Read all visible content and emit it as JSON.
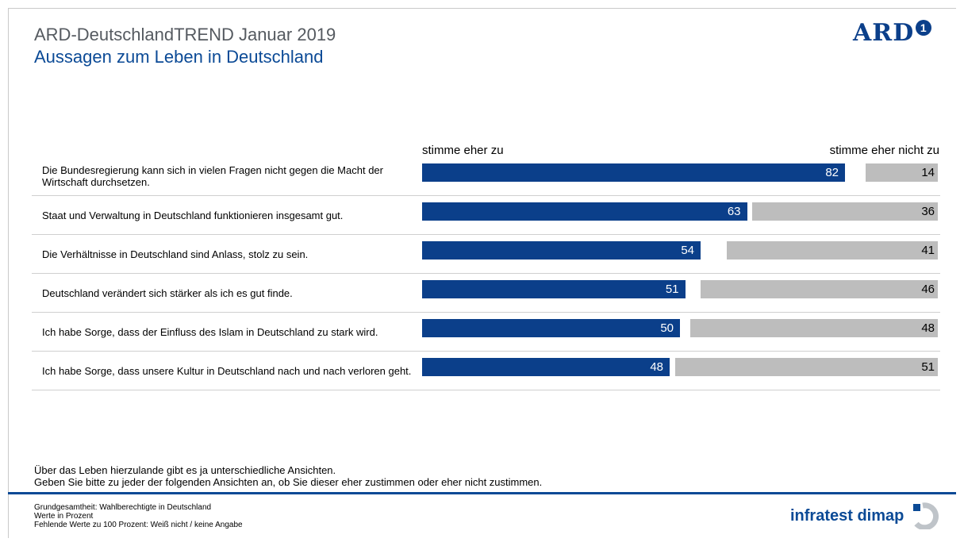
{
  "header": {
    "title": "ARD-DeutschlandTREND Januar 2019",
    "subtitle": "Aussagen zum Leben in Deutschland",
    "logo_text": "ARD",
    "logo_badge": "1"
  },
  "chart_data": {
    "type": "bar",
    "orientation": "horizontal",
    "stacked": "diverging",
    "categories": [
      "Die Bundesregierung kann sich in vielen Fragen nicht gegen die Macht der Wirtschaft durchsetzen.",
      "Staat und Verwaltung in Deutschland funktionieren insgesamt gut.",
      "Die Verhältnisse in Deutschland sind Anlass, stolz zu sein.",
      "Deutschland verändert sich stärker als ich es gut finde.",
      "Ich habe Sorge, dass der Einfluss des Islam in Deutschland zu stark wird.",
      "Ich habe Sorge, dass unsere Kultur in Deutschland nach und nach verloren geht."
    ],
    "series": [
      {
        "name": "stimme eher zu",
        "values": [
          82,
          63,
          54,
          51,
          50,
          48
        ],
        "color": "#0b3f8a"
      },
      {
        "name": "stimme eher nicht zu",
        "values": [
          14,
          36,
          41,
          46,
          48,
          51
        ],
        "color": "#bdbdbd"
      }
    ],
    "xlim": [
      0,
      100
    ]
  },
  "question": {
    "line1": "Über das Leben hierzulande gibt es ja unterschiedliche Ansichten.",
    "line2": "Geben Sie bitte zu jeder der folgenden Ansichten an, ob Sie dieser eher zustimmen oder eher nicht zustimmen."
  },
  "footer": {
    "line1": "Grundgesamtheit: Wahlberechtigte in Deutschland",
    "line2": "Werte in Prozent",
    "line3": "Fehlende Werte zu 100 Prozent: Weiß nicht / keine Angabe",
    "brand": "infratest dimap"
  },
  "colors": {
    "accent": "#0b4a96",
    "agree": "#0b3f8a",
    "disagree": "#bdbdbd"
  }
}
